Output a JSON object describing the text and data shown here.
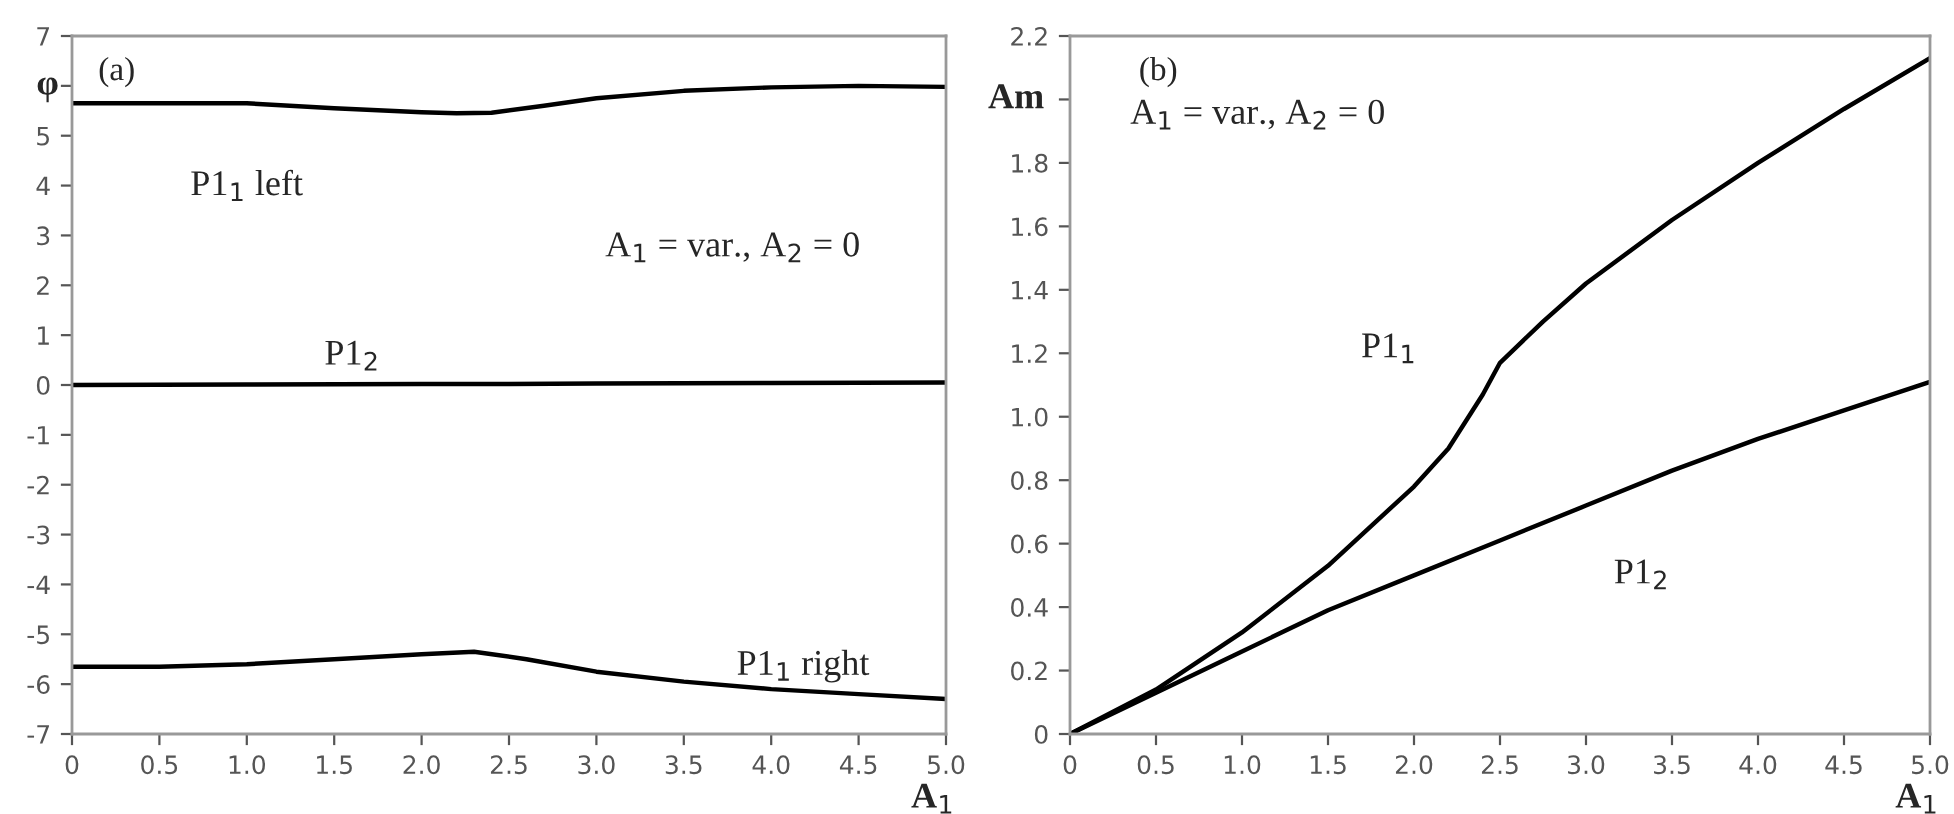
{
  "chart_data": [
    {
      "type": "line",
      "xlabel": "A$_{1}$",
      "ylabel": "φ",
      "annotations": [
        "(a)",
        "A$_{1}$ = var., A$_{2}$ = 0"
      ],
      "xlim": [
        0,
        5
      ],
      "xticks": [
        0,
        0.5,
        {
          "value": 1,
          "label": "1.0"
        },
        1.5,
        {
          "value": 2,
          "label": "2.0"
        },
        2.5,
        {
          "value": 3,
          "label": "3.0"
        },
        3.5,
        {
          "value": 4,
          "label": "4.0"
        },
        4.5,
        {
          "value": 5,
          "label": "5.0"
        }
      ],
      "ylim": [
        -7,
        7
      ],
      "yticks": [
        -7,
        -6,
        -5,
        -4,
        -3,
        -2,
        -1,
        0,
        1,
        2,
        3,
        4,
        5,
        {
          "value": 6,
          "label": null
        },
        7
      ],
      "grid": false,
      "legend": false,
      "marker": "none",
      "line_style": "solid",
      "series": [
        {
          "name": "P1$_{1}$ left",
          "color": "#000000",
          "x": [
            0,
            0.5,
            1.0,
            1.5,
            2.0,
            2.2,
            2.4,
            2.7,
            3.0,
            3.5,
            4.0,
            4.5,
            5.0
          ],
          "values": [
            5.65,
            5.65,
            5.65,
            5.55,
            5.47,
            5.45,
            5.46,
            5.6,
            5.75,
            5.9,
            5.97,
            6.0,
            5.98
          ]
        },
        {
          "name": "P1$_{2}$",
          "color": "#000000",
          "x": [
            0,
            1,
            2,
            2.5,
            3,
            4,
            5
          ],
          "values": [
            0,
            0.01,
            0.02,
            0.02,
            0.03,
            0.04,
            0.05
          ]
        },
        {
          "name": "P1$_{1}$ right",
          "color": "#000000",
          "x": [
            0,
            0.5,
            1.0,
            1.5,
            2.0,
            2.3,
            2.6,
            3.0,
            3.5,
            4.0,
            4.5,
            5.0
          ],
          "values": [
            -5.65,
            -5.65,
            -5.6,
            -5.5,
            -5.4,
            -5.35,
            -5.5,
            -5.75,
            -5.95,
            -6.1,
            -6.2,
            -6.3
          ]
        }
      ]
    },
    {
      "type": "line",
      "xlabel": "A$_{1}$",
      "ylabel": "Am",
      "annotations": [
        "(b)",
        "A$_{1}$ = var., A$_{2}$ = 0"
      ],
      "xlim": [
        0,
        5
      ],
      "xticks": [
        0,
        0.5,
        {
          "value": 1,
          "label": "1.0"
        },
        1.5,
        {
          "value": 2,
          "label": "2.0"
        },
        2.5,
        {
          "value": 3,
          "label": "3.0"
        },
        3.5,
        {
          "value": 4,
          "label": "4.0"
        },
        4.5,
        {
          "value": 5,
          "label": "5.0"
        }
      ],
      "ylim": [
        0,
        2.2
      ],
      "yticks": [
        0,
        0.2,
        0.4,
        0.6,
        0.8,
        {
          "value": 1,
          "label": "1.0"
        },
        1.2,
        1.4,
        1.6,
        1.8,
        {
          "value": 2,
          "label": null
        },
        2.2
      ],
      "grid": false,
      "legend": false,
      "marker": "none",
      "line_style": "solid",
      "series": [
        {
          "name": "P1$_{1}$",
          "color": "#000000",
          "x": [
            0,
            0.5,
            1.0,
            1.5,
            2.0,
            2.2,
            2.4,
            2.5,
            2.75,
            3.0,
            3.5,
            4.0,
            4.5,
            5.0
          ],
          "values": [
            0,
            0.14,
            0.32,
            0.53,
            0.78,
            0.9,
            1.07,
            1.17,
            1.3,
            1.42,
            1.62,
            1.8,
            1.97,
            2.13
          ]
        },
        {
          "name": "P1$_{2}$",
          "color": "#000000",
          "x": [
            0,
            0.5,
            1.0,
            1.5,
            2.0,
            2.5,
            3.0,
            3.5,
            4.0,
            4.5,
            5.0
          ],
          "values": [
            0,
            0.13,
            0.26,
            0.39,
            0.5,
            0.61,
            0.72,
            0.83,
            0.93,
            1.02,
            1.11
          ]
        }
      ]
    }
  ]
}
